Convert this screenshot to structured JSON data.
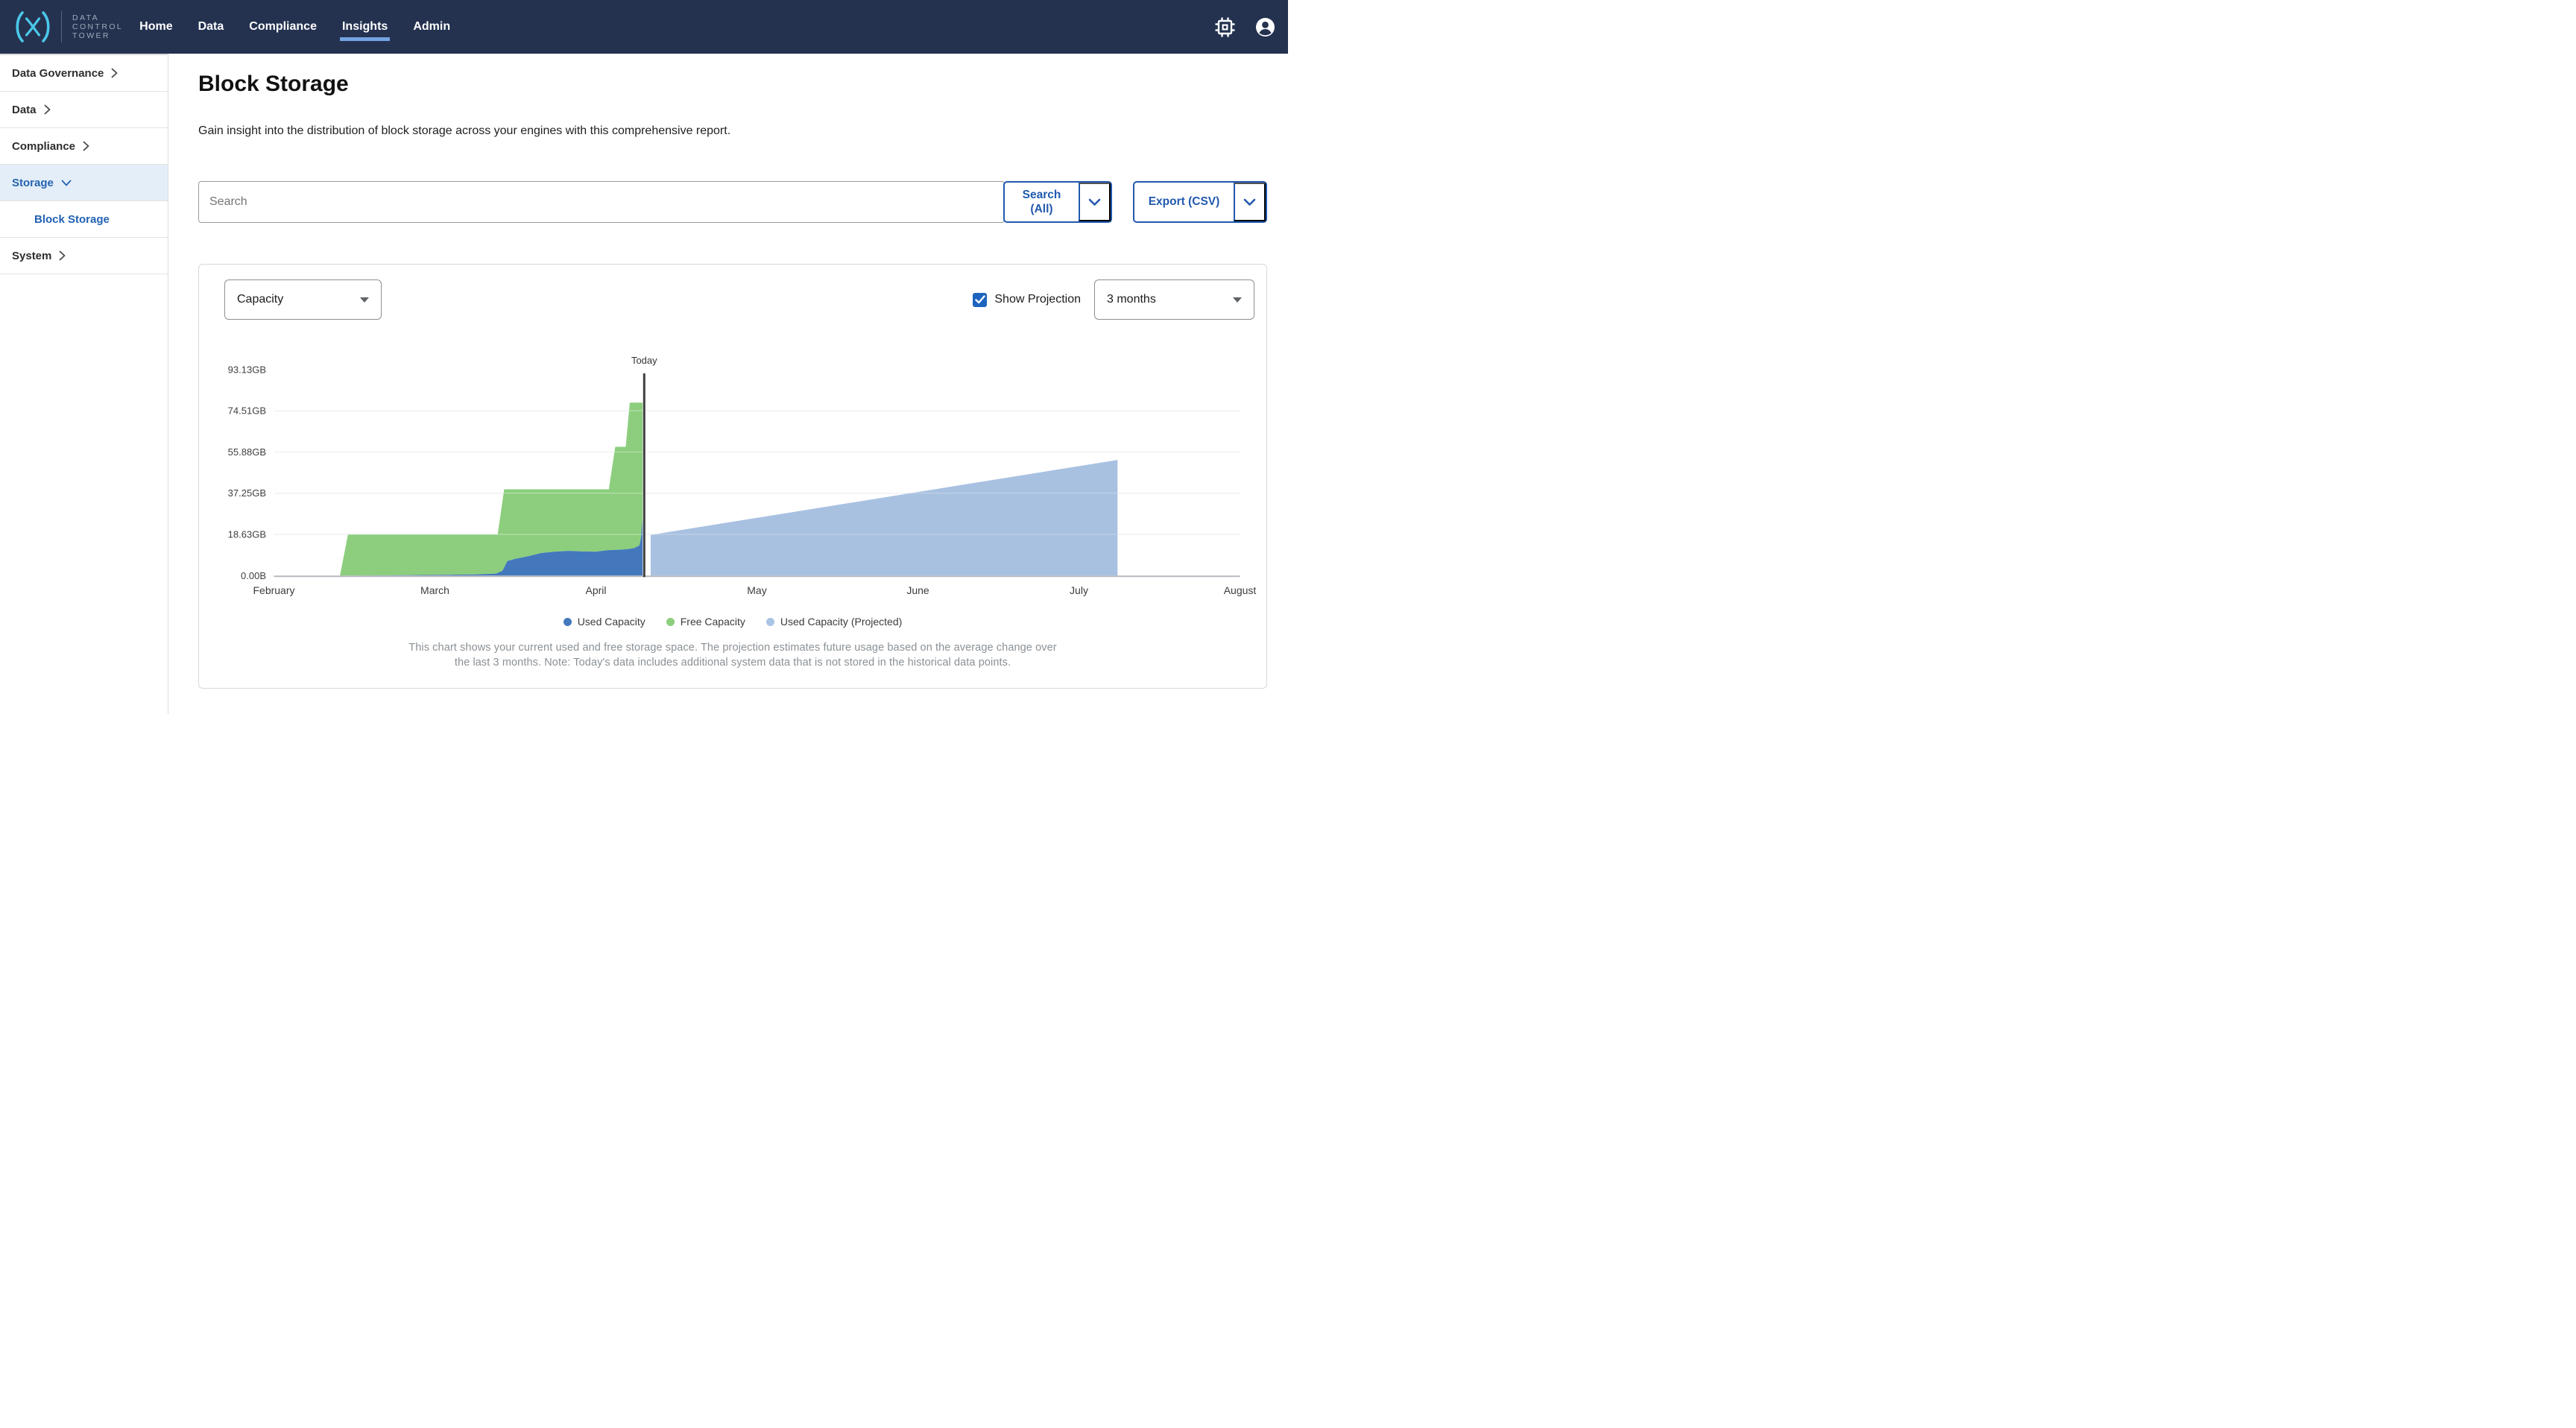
{
  "colors": {
    "navbar": "#243250",
    "logo_cyan": "#4AC7E9",
    "nav_underline": "#74A3E2",
    "button_blue": "#2159AE",
    "link_blue": "#2161B3",
    "sidebar_active_bg": "#E4EEF8",
    "checkbox_blue": "#1E63BE",
    "used_capacity": "#4378BD",
    "free_capacity": "#8CCE7D",
    "projected_capacity": "#A9C4E4",
    "today_line": "#3F3F3F"
  },
  "header": {
    "brand_lines": [
      "DATA",
      "CONTROL",
      "TOWER"
    ],
    "nav_items": [
      {
        "label": "Home",
        "active": false
      },
      {
        "label": "Data",
        "active": false
      },
      {
        "label": "Compliance",
        "active": false
      },
      {
        "label": "Insights",
        "active": true
      },
      {
        "label": "Admin",
        "active": false
      }
    ]
  },
  "sidebar": {
    "items": [
      {
        "label": "Data Governance",
        "chevron": "right",
        "active": false,
        "sub": false
      },
      {
        "label": "Data",
        "chevron": "right",
        "active": false,
        "sub": false
      },
      {
        "label": "Compliance",
        "chevron": "right",
        "active": false,
        "sub": false
      },
      {
        "label": "Storage",
        "chevron": "down",
        "active": true,
        "sub": false
      },
      {
        "label": "Block Storage",
        "chevron": "none",
        "active": true,
        "sub": true
      },
      {
        "label": "System",
        "chevron": "right",
        "active": false,
        "sub": false
      }
    ]
  },
  "page": {
    "title": "Block Storage",
    "description": "Gain insight into the distribution of block storage across your engines with this comprehensive report."
  },
  "toolbar": {
    "search_placeholder": "Search",
    "search_button_label": "Search (All)",
    "export_button_label": "Export (CSV)"
  },
  "chart_controls": {
    "metric_value": "Capacity",
    "show_projection_label": "Show Projection",
    "show_projection_checked": true,
    "range_value": "3 months"
  },
  "chart_data": {
    "type": "area",
    "stacked": true,
    "unit": "GB",
    "grid": true,
    "legend_position": "bottom",
    "x_axis_note": "points are [month_x, GB]; month_x counts months from the February tick (February=0, March=1, April=2, May=3, June=4, July=5, August=6)",
    "months": [
      "February",
      "March",
      "April",
      "May",
      "June",
      "July",
      "August"
    ],
    "y_ticks": [
      {
        "label": "0.00B",
        "gb": 0
      },
      {
        "label": "18.63GB",
        "gb": 18.63
      },
      {
        "label": "37.25GB",
        "gb": 37.25
      },
      {
        "label": "55.88GB",
        "gb": 55.88
      },
      {
        "label": "74.51GB",
        "gb": 74.51
      },
      {
        "label": "93.13GB",
        "gb": 93.13
      }
    ],
    "ylim": [
      0,
      93.13
    ],
    "today": {
      "label": "Today",
      "month_x": 2.3,
      "line_color": "#3F3F3F"
    },
    "series": [
      {
        "id": "used",
        "name": "Used Capacity",
        "color": "#4378BD",
        "points": [
          [
            0.45,
            0
          ],
          [
            0.8,
            0.2
          ],
          [
            1.05,
            0.35
          ],
          [
            1.25,
            0.55
          ],
          [
            1.38,
            0.9
          ],
          [
            1.42,
            2.2
          ],
          [
            1.45,
            6.6
          ],
          [
            1.5,
            7.6
          ],
          [
            1.58,
            8.8
          ],
          [
            1.66,
            10.2
          ],
          [
            1.74,
            10.8
          ],
          [
            1.83,
            11.2
          ],
          [
            1.92,
            10.9
          ],
          [
            2.0,
            10.8
          ],
          [
            2.07,
            11.5
          ],
          [
            2.14,
            11.7
          ],
          [
            2.2,
            12.0
          ],
          [
            2.24,
            12.5
          ],
          [
            2.27,
            13.6
          ],
          [
            2.28,
            17.0
          ],
          [
            2.29,
            25.8
          ]
        ]
      },
      {
        "id": "free",
        "name": "Free Capacity",
        "color": "#8CCE7D",
        "total_points": [
          [
            0.41,
            0
          ],
          [
            0.46,
            18.63
          ],
          [
            1.39,
            18.63
          ],
          [
            1.43,
            39.0
          ],
          [
            2.08,
            39.0
          ],
          [
            2.12,
            58.2
          ],
          [
            2.185,
            58.2
          ],
          [
            2.21,
            78.2
          ],
          [
            2.29,
            78.2
          ]
        ]
      },
      {
        "id": "projected",
        "name": "Used Capacity (Projected)",
        "color": "#A9C4E4",
        "fill": "rgba(67,120,189,0.46)",
        "points": [
          [
            2.34,
            18.4
          ],
          [
            5.24,
            52.3
          ]
        ]
      }
    ]
  },
  "footnote": "This chart shows your current used and free storage space. The projection estimates future usage based on the average change over the last 3 months. Note: Today's data includes additional system data that is not stored in the historical data points."
}
